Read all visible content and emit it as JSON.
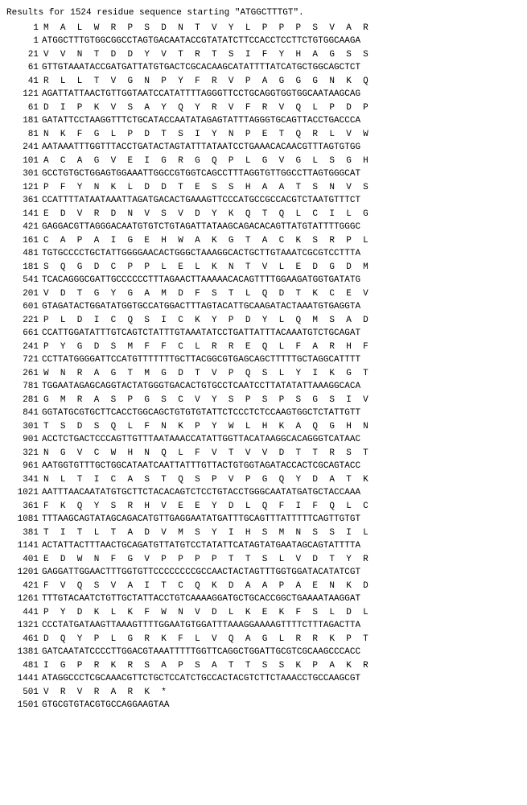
{
  "header": "Results for 1524 residue sequence starting \"ATGGCTTTGT\".",
  "font_family": "Courier New",
  "font_size": 11,
  "text_color": "#000000",
  "background_color": "#ffffff",
  "lines": [
    {
      "type": "aa",
      "pos": "1",
      "seq": "MALWRPSDNTVYLPPPSVAR"
    },
    {
      "type": "nt",
      "pos": "1",
      "seq": "ATGGCTTTGTGGCGGCCTAGTGACAATACCGTATATCTTCCACCTCCTTCTGTGGCAAGA"
    },
    {
      "type": "aa",
      "pos": "21",
      "seq": "VVNTDDYVTRTSIFYHAGSS"
    },
    {
      "type": "nt",
      "pos": "61",
      "seq": "GTTGTAAATACCGATGATTATGTGACTCGCACAAGCATATTTTATCATGCTGGCAGCTCT"
    },
    {
      "type": "aa",
      "pos": "41",
      "seq": "RLLTVGNPYFRVPAGGGNKQ"
    },
    {
      "type": "nt",
      "pos": "121",
      "seq": "AGATTATTAACTGTTGGTAATCCATATTTTAGGGTTCCTGCAGGTGGTGGCAATAAGCAG"
    },
    {
      "type": "aa",
      "pos": "61",
      "seq": "DIPKVSAYQYRVFRVQLPDP"
    },
    {
      "type": "nt",
      "pos": "181",
      "seq": "GATATTCCTAAGGTTTCTGCATACCAATATAGAGTATTTAGGGTGCAGTTACCTGACCCA"
    },
    {
      "type": "aa",
      "pos": "81",
      "seq": "NKFGLPDTSIYNPETQRLVW"
    },
    {
      "type": "nt",
      "pos": "241",
      "seq": "AATAAATTTGGTTTACCTGATACTAGTATTTATAATCCTGAAACACAACGTTTAGTGTGG"
    },
    {
      "type": "aa",
      "pos": "101",
      "seq": "ACAGVEIGRGQPLGVGLSGH"
    },
    {
      "type": "nt",
      "pos": "301",
      "seq": "GCCTGTGCTGGAGTGGAAATTGGCCGTGGTCAGCCTTTAGGTGTTGGCCTTAGTGGGCAT"
    },
    {
      "type": "aa",
      "pos": "121",
      "seq": "PFYNKLDDTESSHAATSNVS"
    },
    {
      "type": "nt",
      "pos": "361",
      "seq": "CCATTTTATAATAAATTAGATGACACTGAAAGTTCCCATGCCGCCACGTCTAATGTTTCT"
    },
    {
      "type": "aa",
      "pos": "141",
      "seq": "EDVRDNVSVDYKQTQLCILG"
    },
    {
      "type": "nt",
      "pos": "421",
      "seq": "GAGGACGTTAGGGACAATGTGTCTGTAGATTATAAGCAGACACAGTTATGTATTTTGGGC"
    },
    {
      "type": "aa",
      "pos": "161",
      "seq": "CAPAIGEHWAKGTACKSRPL"
    },
    {
      "type": "nt",
      "pos": "481",
      "seq": "TGTGCCCCTGCTATTGGGGAACACTGGGCTAAAGGCACTGCTTGTAAATCGCGTCCTTTA"
    },
    {
      "type": "aa",
      "pos": "181",
      "seq": "SQGDCPPLELKNTVLEDGDM"
    },
    {
      "type": "nt",
      "pos": "541",
      "seq": "TCACAGGGCGATTGCCCCCCTTTAGAACTTAAAAACACAGTTTTGGAAGATGGTGATATG"
    },
    {
      "type": "aa",
      "pos": "201",
      "seq": "VDTGYGAMDFSTLQDTKCEV"
    },
    {
      "type": "nt",
      "pos": "601",
      "seq": "GTAGATACTGGATATGGTGCCATGGACTTTAGTACATTGCAAGATACTAAATGTGAGGTA"
    },
    {
      "type": "aa",
      "pos": "221",
      "seq": "PLDICQSICKYPDYLQMSAD"
    },
    {
      "type": "nt",
      "pos": "661",
      "seq": "CCATTGGATATTTGTCAGTCTATTTGTAAATATCCTGATTATTTACAAATGTCTGCAGAT"
    },
    {
      "type": "aa",
      "pos": "241",
      "seq": "PYGDSMFFCLRREQLFARHF"
    },
    {
      "type": "nt",
      "pos": "721",
      "seq": "CCTTATGGGGATTCCATGTTTTTTTGCTTACGGCGTGAGCAGCTTTTTGCTAGGCATTTT"
    },
    {
      "type": "aa",
      "pos": "261",
      "seq": "WNRAGTMGDTVPQSLYIKGT"
    },
    {
      "type": "nt",
      "pos": "781",
      "seq": "TGGAATAGAGCAGGTACTATGGGTGACACTGTGCCTCAATCCTTATATATTAAAGGCACA"
    },
    {
      "type": "aa",
      "pos": "281",
      "seq": "GMRASPGSCVYSPSPSGSIV"
    },
    {
      "type": "nt",
      "pos": "841",
      "seq": "GGTATGCGTGCTTCACCTGGCAGCTGTGTGTATTCTCCCTCTCCAAGTGGCTCTATTGTT"
    },
    {
      "type": "aa",
      "pos": "301",
      "seq": "TSDSQLFNKPYWLHKAQGHN"
    },
    {
      "type": "nt",
      "pos": "901",
      "seq": "ACCTCTGACTCCCAGTTGTTTAATAAACCATATTGGTTACATAAGGCACAGGGTCATAAC"
    },
    {
      "type": "aa",
      "pos": "321",
      "seq": "NGVCWHNQLFVTVVDTTRST"
    },
    {
      "type": "nt",
      "pos": "961",
      "seq": "AATGGTGTTTGCTGGCATAATCAATTATTTGTTACTGTGGTAGATACCACTCGCAGTACC"
    },
    {
      "type": "aa",
      "pos": "341",
      "seq": "NLTICASTQSPVPGQYDATK"
    },
    {
      "type": "nt",
      "pos": "1021",
      "seq": "AATTTAACAATATGTGCTTCTACACAGTCTCCTGTACCTGGGCAATATGATGCTACCAAA"
    },
    {
      "type": "aa",
      "pos": "361",
      "seq": "FKQYSRHVEEYDLQFIFQLC"
    },
    {
      "type": "nt",
      "pos": "1081",
      "seq": "TTTAAGCAGTATAGCAGACATGTTGAGGAATATGATTTGCAGTTTATTTTTCAGTTGTGT"
    },
    {
      "type": "aa",
      "pos": "381",
      "seq": "TITLTADVMSYIHSMNSSIL"
    },
    {
      "type": "nt",
      "pos": "1141",
      "seq": "ACTATTACTTTAACTGCAGATGTTATGTCCTATATTCATAGTATGAATAGCAGTATTTTA"
    },
    {
      "type": "aa",
      "pos": "401",
      "seq": "EDWNFGVPPPPTTSLVDTYR"
    },
    {
      "type": "nt",
      "pos": "1201",
      "seq": "GAGGATTGGAACTTTGGTGTTCCCCCCCCGCCAACTACTAGTTTGGTGGATACATATCGT"
    },
    {
      "type": "aa",
      "pos": "421",
      "seq": "FVQSVAITCQKDAAPAENKD"
    },
    {
      "type": "nt",
      "pos": "1261",
      "seq": "TTTGTACAATCTGTTGCTATTACCTGTCAAAAGGATGCTGCACCGGCTGAAAATAAGGAT"
    },
    {
      "type": "aa",
      "pos": "441",
      "seq": "PYDKLKFWNVDLKEKFSLDL"
    },
    {
      "type": "nt",
      "pos": "1321",
      "seq": "CCCTATGATAAGTTAAAGTTTTGGAATGTGGATTTAAAGGAAAAGTTTTCTTTAGACTTA"
    },
    {
      "type": "aa",
      "pos": "461",
      "seq": "DQYPLGRKFLVQAGLRRKPT"
    },
    {
      "type": "nt",
      "pos": "1381",
      "seq": "GATCAATATCCCCTTGGACGTAAATTTTTGGTTCAGGCTGGATTGCGTCGCAAGCCCACC"
    },
    {
      "type": "aa",
      "pos": "481",
      "seq": "IGPRKRSAPSATTSSKPAKR"
    },
    {
      "type": "nt",
      "pos": "1441",
      "seq": "ATAGGCCCTCGCAAACGTTCTGCTCCATCTGCCACTACGTCTTCTAAACCTGCCAAGCGT"
    },
    {
      "type": "aa",
      "pos": "501",
      "seq": "VRVRARK*"
    },
    {
      "type": "nt",
      "pos": "1501",
      "seq": "GTGCGTGTACGTGCCAGGAAGTAA"
    }
  ]
}
